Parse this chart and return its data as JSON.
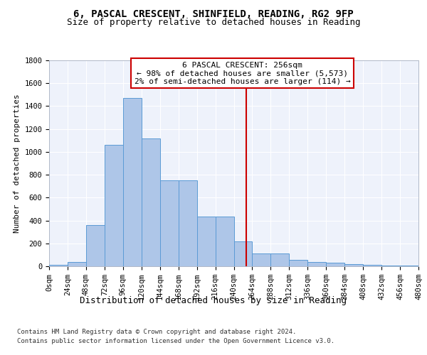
{
  "title1": "6, PASCAL CRESCENT, SHINFIELD, READING, RG2 9FP",
  "title2": "Size of property relative to detached houses in Reading",
  "xlabel": "Distribution of detached houses by size in Reading",
  "ylabel": "Number of detached properties",
  "bar_values": [
    10,
    35,
    360,
    1060,
    1470,
    1120,
    750,
    750,
    435,
    435,
    220,
    110,
    110,
    55,
    40,
    30,
    20,
    10,
    5,
    5
  ],
  "bin_edges": [
    0,
    24,
    48,
    72,
    96,
    120,
    144,
    168,
    192,
    216,
    240,
    264,
    288,
    312,
    336,
    360,
    384,
    408,
    432,
    456,
    480
  ],
  "bar_color": "#aec6e8",
  "bar_edge_color": "#5b9bd5",
  "property_size": 256,
  "vline_color": "#cc0000",
  "annotation_line1": "6 PASCAL CRESCENT: 256sqm",
  "annotation_line2": "← 98% of detached houses are smaller (5,573)",
  "annotation_line3": "2% of semi-detached houses are larger (114) →",
  "annotation_box_color": "#ffffff",
  "annotation_box_edge": "#cc0000",
  "ylim": [
    0,
    1800
  ],
  "yticks": [
    0,
    200,
    400,
    600,
    800,
    1000,
    1200,
    1400,
    1600,
    1800
  ],
  "bg_color": "#eef2fb",
  "grid_color": "#ffffff",
  "footer_line1": "Contains HM Land Registry data © Crown copyright and database right 2024.",
  "footer_line2": "Contains public sector information licensed under the Open Government Licence v3.0.",
  "title1_fontsize": 10,
  "title2_fontsize": 9,
  "xlabel_fontsize": 9,
  "ylabel_fontsize": 8,
  "tick_fontsize": 7.5,
  "annotation_fontsize": 8,
  "footer_fontsize": 6.5
}
